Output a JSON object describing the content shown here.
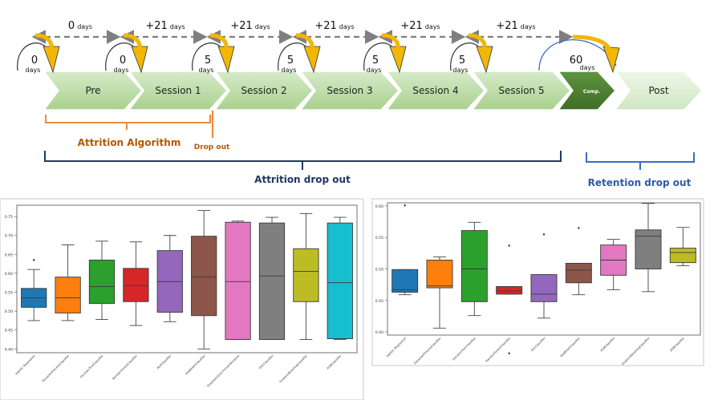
{
  "timeline": {
    "stages": [
      "Pre",
      "Session 1",
      "Session 2",
      "Session 3",
      "Session 4",
      "Session 5",
      "Comp.",
      "Post"
    ],
    "interval_labels": [
      {
        "value": "0",
        "unit": "days"
      },
      {
        "value": "+21",
        "unit": "days"
      },
      {
        "value": "+21",
        "unit": "days"
      },
      {
        "value": "+21",
        "unit": "days"
      },
      {
        "value": "+21",
        "unit": "days"
      },
      {
        "value": "+21",
        "unit": "days"
      }
    ],
    "gap_labels": [
      {
        "value": "0",
        "unit": "days"
      },
      {
        "value": "0",
        "unit": "days"
      },
      {
        "value": "5",
        "unit": "days"
      },
      {
        "value": "5",
        "unit": "days"
      },
      {
        "value": "5",
        "unit": "days"
      },
      {
        "value": "5",
        "unit": "days"
      },
      {
        "value": "60",
        "unit": "days"
      }
    ],
    "attrition_algorithm_label": "Attrition Algorithm",
    "drop_out_label": "Drop out",
    "attrition_drop_out_label": "Attrition drop out",
    "retention_drop_out_label": "Retention drop out",
    "colors": {
      "stage_fill": "#b9dca7",
      "stage_fill_light": "#d9ecd0",
      "comp_fill": "#4a7a2f",
      "arrow_orange": "#f2b705",
      "orange_text": "#b35a00",
      "bracket_orange": "#ee8a3c",
      "navy": "#1f3864",
      "blue": "#3b6cc4",
      "dash_gray": "#7f7f7f"
    }
  },
  "chart_data": [
    {
      "type": "box",
      "title": "",
      "categories": [
        "logistic Regression",
        "GaussianProcessClassifier",
        "DecisionTreeClassifier",
        "RandomForestClassifier",
        "MLPClassifier",
        "AdaBoostClassifier",
        "QuadraticDiscriminantAnalysis",
        "SVCClassifier",
        "GradientBoostingClassifier",
        "XGBClassifier"
      ],
      "ylim": [
        0.39,
        0.78
      ],
      "yticks": [
        "0.40",
        "0.45",
        "0.50",
        "0.55",
        "0.60",
        "0.65",
        "0.70",
        "0.75"
      ],
      "colors": [
        "#1f77b4",
        "#ff7f0e",
        "#2ca02c",
        "#d62728",
        "#9467bd",
        "#8c564b",
        "#e377c2",
        "#7f7f7f",
        "#bcbd22",
        "#17becf"
      ],
      "boxes": [
        {
          "whislo": 0.475,
          "q1": 0.51,
          "med": 0.535,
          "q3": 0.56,
          "whishi": 0.61,
          "fliers": [
            0.635
          ]
        },
        {
          "whislo": 0.475,
          "q1": 0.495,
          "med": 0.535,
          "q3": 0.59,
          "whishi": 0.675,
          "fliers": []
        },
        {
          "whislo": 0.478,
          "q1": 0.52,
          "med": 0.565,
          "q3": 0.635,
          "whishi": 0.685,
          "fliers": []
        },
        {
          "whislo": 0.462,
          "q1": 0.525,
          "med": 0.568,
          "q3": 0.613,
          "whishi": 0.683,
          "fliers": []
        },
        {
          "whislo": 0.472,
          "q1": 0.497,
          "med": 0.578,
          "q3": 0.66,
          "whishi": 0.7,
          "fliers": []
        },
        {
          "whislo": 0.4,
          "q1": 0.488,
          "med": 0.59,
          "q3": 0.698,
          "whishi": 0.766,
          "fliers": []
        },
        {
          "whislo": 0.425,
          "q1": 0.425,
          "med": 0.578,
          "q3": 0.735,
          "whishi": 0.738,
          "fliers": []
        },
        {
          "whislo": 0.425,
          "q1": 0.425,
          "med": 0.593,
          "q3": 0.733,
          "whishi": 0.748,
          "fliers": []
        },
        {
          "whislo": 0.425,
          "q1": 0.525,
          "med": 0.605,
          "q3": 0.665,
          "whishi": 0.758,
          "fliers": []
        },
        {
          "whislo": 0.425,
          "q1": 0.427,
          "med": 0.575,
          "q3": 0.733,
          "whishi": 0.748,
          "fliers": []
        }
      ]
    },
    {
      "type": "box",
      "title": "",
      "categories": [
        "logistic Regression",
        "GaussianProcessClassifier",
        "DecisionTreeClassifier",
        "RandomForestClassifier",
        "SVCClassifier",
        "AdaBoostClassifier",
        "XGBClassifier",
        "GradientBoostingClassifier",
        "XGBClassifier"
      ],
      "ylim": [
        0.395,
        0.605
      ],
      "yticks": [
        "0.40",
        "0.45",
        "0.50",
        "0.55",
        "0.60"
      ],
      "colors": [
        "#1f77b4",
        "#ff7f0e",
        "#2ca02c",
        "#d62728",
        "#9467bd",
        "#8c564b",
        "#e377c2",
        "#7f7f7f",
        "#bcbd22"
      ],
      "boxes": [
        {
          "whislo": 0.459,
          "q1": 0.463,
          "med": 0.467,
          "q3": 0.499,
          "whishi": 0.499,
          "fliers": [
            0.601
          ]
        },
        {
          "whislo": 0.406,
          "q1": 0.47,
          "med": 0.473,
          "q3": 0.514,
          "whishi": 0.519,
          "fliers": []
        },
        {
          "whislo": 0.426,
          "q1": 0.448,
          "med": 0.5,
          "q3": 0.561,
          "whishi": 0.574,
          "fliers": []
        },
        {
          "whislo": 0.46,
          "q1": 0.46,
          "med": 0.465,
          "q3": 0.472,
          "whishi": 0.472,
          "fliers": [
            0.537,
            0.366
          ]
        },
        {
          "whislo": 0.422,
          "q1": 0.448,
          "med": 0.46,
          "q3": 0.491,
          "whishi": 0.491,
          "fliers": [
            0.555
          ]
        },
        {
          "whislo": 0.459,
          "q1": 0.478,
          "med": 0.498,
          "q3": 0.509,
          "whishi": 0.509,
          "fliers": [
            0.565
          ]
        },
        {
          "whislo": 0.467,
          "q1": 0.49,
          "med": 0.514,
          "q3": 0.538,
          "whishi": 0.547,
          "fliers": []
        },
        {
          "whislo": 0.464,
          "q1": 0.5,
          "med": 0.552,
          "q3": 0.562,
          "whishi": 0.604,
          "fliers": []
        },
        {
          "whislo": 0.505,
          "q1": 0.51,
          "med": 0.526,
          "q3": 0.533,
          "whishi": 0.566,
          "fliers": []
        }
      ]
    }
  ]
}
